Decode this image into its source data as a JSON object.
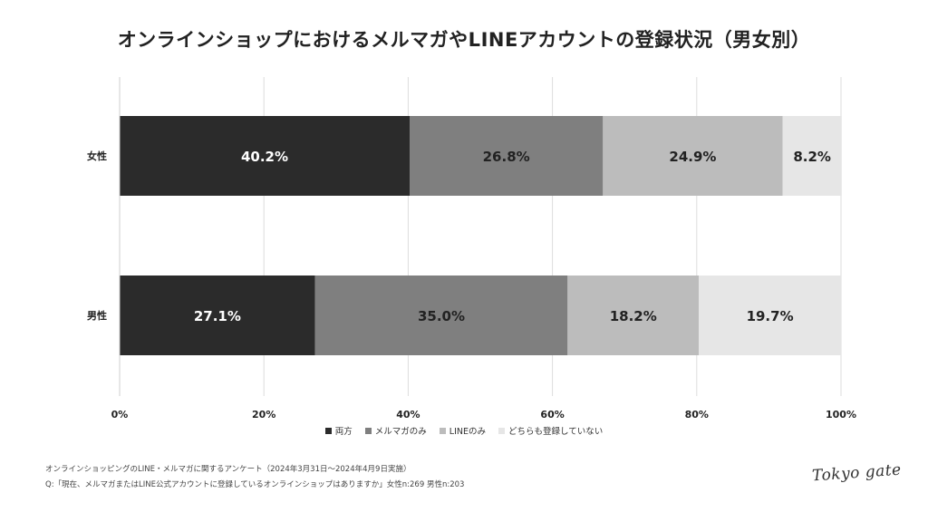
{
  "page": {
    "note_line1": "オンラインショッピングのLINE・メルマガに関するアンケート（2024年3月31日〜2024年4月9日実施）",
    "note_line2": "Q:「現在、メルマガまたはLINE公式アカウントに登録しているオンラインショップはありますか」女性n:269 男性n:203",
    "logo_text": "Tokyo gate"
  },
  "chart_data": {
    "type": "bar",
    "orientation": "horizontal",
    "stacked": true,
    "title": "オンラインショップにおけるメルマガやLINEアカウントの登録状況（男女別）",
    "categories": [
      "女性",
      "男性"
    ],
    "series": [
      {
        "name": "両方",
        "values": [
          40.2,
          27.1
        ],
        "color": "#2b2b2b",
        "label_color": "#ffffff"
      },
      {
        "name": "メルマガのみ",
        "values": [
          26.8,
          35.0
        ],
        "color": "#7f7f7f",
        "label_color": "#222222"
      },
      {
        "name": "LINEのみ",
        "values": [
          24.9,
          18.2
        ],
        "color": "#bcbcbc",
        "label_color": "#222222"
      },
      {
        "name": "どちらも登録していない",
        "values": [
          8.2,
          19.7
        ],
        "color": "#e6e6e6",
        "label_color": "#222222"
      }
    ],
    "xlim": [
      0,
      100
    ],
    "xticks": [
      "0%",
      "20%",
      "40%",
      "60%",
      "80%",
      "100%"
    ],
    "grid": true,
    "legend_position": "bottom"
  }
}
